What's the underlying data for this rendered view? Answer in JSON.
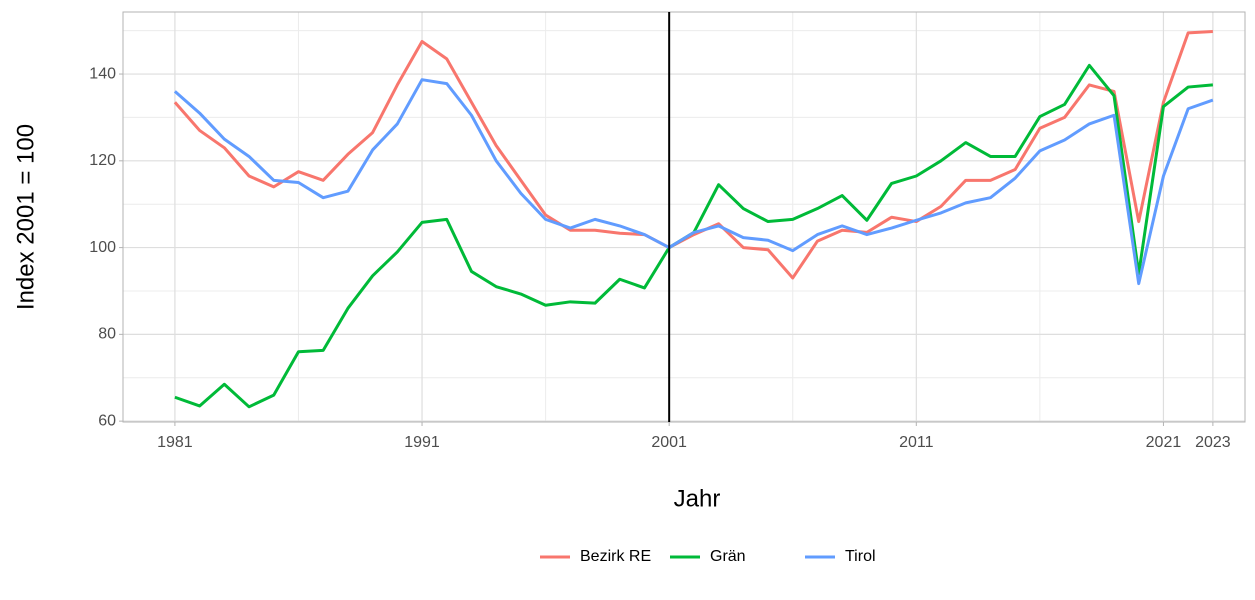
{
  "chart_data": {
    "type": "line",
    "x_label": "Jahr",
    "y_label": "Index 2001 = 100",
    "x": [
      1981,
      1982,
      1983,
      1984,
      1985,
      1986,
      1987,
      1988,
      1989,
      1990,
      1991,
      1992,
      1993,
      1994,
      1995,
      1996,
      1997,
      1998,
      1999,
      2000,
      2001,
      2002,
      2003,
      2004,
      2005,
      2006,
      2007,
      2008,
      2009,
      2010,
      2011,
      2012,
      2013,
      2014,
      2015,
      2016,
      2017,
      2018,
      2019,
      2020,
      2021,
      2022,
      2023
    ],
    "series": [
      {
        "name": "Bezirk RE",
        "color": "#f8766d",
        "values": [
          133.5,
          127,
          123,
          116.5,
          114,
          117.5,
          115.5,
          121.5,
          126.5,
          137.5,
          147.5,
          143.5,
          133.5,
          123.5,
          115.5,
          107.5,
          104,
          104,
          103.3,
          103,
          100,
          103,
          105.5,
          100,
          99.5,
          93,
          101.5,
          104,
          103.5,
          107,
          106,
          109.5,
          115.5,
          115.5,
          118,
          127.5,
          130,
          137.5,
          136,
          106,
          133.5,
          149.5,
          149.8
        ]
      },
      {
        "name": "Grän",
        "color": "#00ba38",
        "values": [
          65.5,
          63.5,
          68.5,
          63.3,
          66,
          76,
          76.3,
          86,
          93.5,
          99,
          105.8,
          106.5,
          94.5,
          91,
          89.3,
          86.7,
          87.5,
          87.2,
          92.7,
          90.7,
          100,
          103.5,
          114.5,
          109,
          106,
          106.5,
          109,
          112,
          106.3,
          114.8,
          116.5,
          120,
          124.2,
          121,
          121,
          130.2,
          133,
          142,
          135,
          94,
          132.5,
          137,
          137.5
        ]
      },
      {
        "name": "Tirol",
        "color": "#619cff",
        "values": [
          136,
          131,
          125,
          121,
          115.5,
          115,
          111.5,
          113,
          122.5,
          128.5,
          138.7,
          137.8,
          130.5,
          120,
          112.5,
          106.5,
          104.5,
          106.5,
          105,
          103,
          100,
          103.5,
          105,
          102.3,
          101.7,
          99.3,
          103,
          105,
          103,
          104.5,
          106.3,
          108,
          110.3,
          111.5,
          116,
          122.3,
          124.8,
          128.5,
          130.5,
          91.7,
          116.5,
          132,
          134
        ]
      }
    ],
    "xlim": [
      1978.9,
      2024.3
    ],
    "ylim": [
      59.8,
      154.3
    ],
    "xticks": [
      1981,
      1991,
      2001,
      2011,
      2021,
      2023
    ],
    "yticks": [
      60,
      80,
      100,
      120,
      140
    ],
    "minor_xticks": [
      1986,
      1996,
      2006,
      2016
    ],
    "minor_yticks": [
      70,
      90,
      110,
      130,
      150
    ],
    "vline": 2001,
    "grid": true,
    "legend": "bottom"
  }
}
